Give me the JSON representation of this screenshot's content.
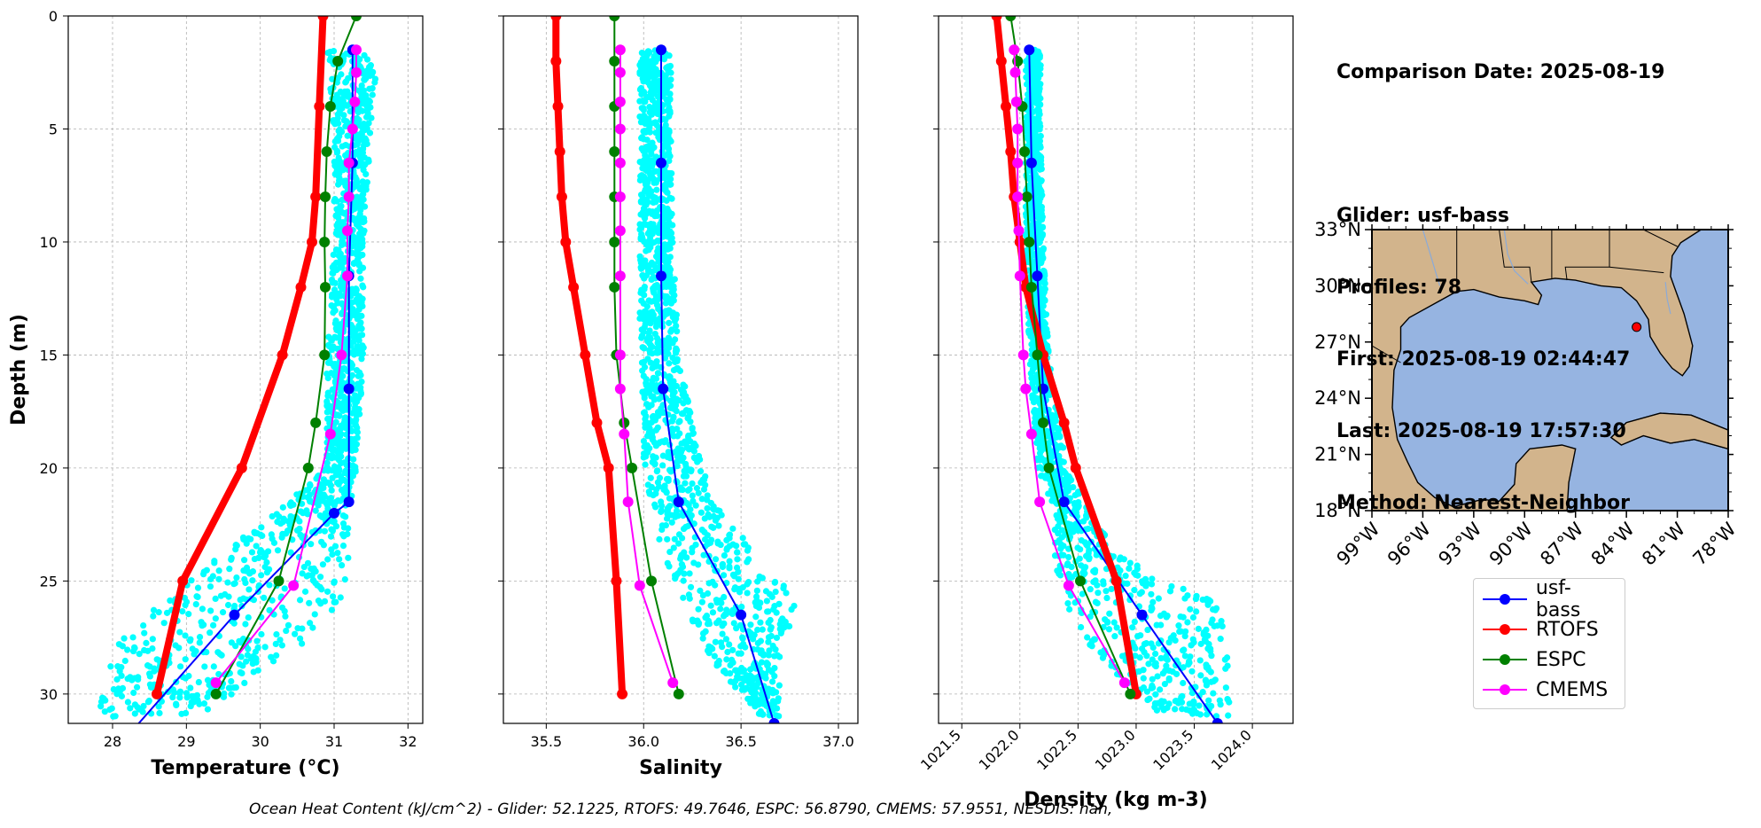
{
  "info": {
    "comparison_date": "Comparison Date: 2025-08-19",
    "glider": "Glider: usf-bass",
    "profiles": "Profiles: 78",
    "first": "First: 2025-08-19 02:44:47",
    "last": "Last: 2025-08-19 17:57:30",
    "method": "Method: Nearest-Neighbor"
  },
  "footer": "Ocean Heat Content (kJ/cm^2) - Glider: 52.1225,  RTOFS: 49.7646,  ESPC: 56.8790,  CMEMS: 57.9551,  NESDIS: nan,",
  "legend": [
    {
      "name": "usf-bass",
      "color": "#0000ff"
    },
    {
      "name": "RTOFS",
      "color": "#ff0000"
    },
    {
      "name": "ESPC",
      "color": "#008000"
    },
    {
      "name": "CMEMS",
      "color": "#ff00ff"
    }
  ],
  "chart_data": [
    {
      "type": "line",
      "xlabel": "Temperature (°C)",
      "ylabel": "Depth (m)",
      "xlim": [
        27.4,
        32.2
      ],
      "ylim": [
        31.3,
        0
      ],
      "xticks": [
        "28",
        "29",
        "30",
        "31",
        "32"
      ],
      "yticks": [
        "0",
        "5",
        "10",
        "15",
        "20",
        "25",
        "30"
      ],
      "grid": true,
      "scatter": {
        "name": "glider points",
        "color": "#00ffff",
        "x_range_by_depth": [
          [
            1.5,
            30.9,
            31.6
          ],
          [
            5,
            31.0,
            31.5
          ],
          [
            10,
            31.0,
            31.4
          ],
          [
            15,
            30.9,
            31.4
          ],
          [
            20,
            30.9,
            31.3
          ],
          [
            22,
            30.2,
            31.2
          ],
          [
            24,
            29.4,
            31.2
          ],
          [
            26,
            28.6,
            31.1
          ],
          [
            28,
            28.0,
            30.5
          ],
          [
            31,
            27.8,
            29.2
          ]
        ]
      },
      "series": [
        {
          "name": "usf-bass",
          "color": "#0000ff",
          "x": [
            31.25,
            31.25,
            31.2,
            31.2,
            31.2,
            31.0,
            29.65,
            28.3
          ],
          "y": [
            1.5,
            6.5,
            11.5,
            16.5,
            21.5,
            22.0,
            26.5,
            31.5
          ]
        },
        {
          "name": "RTOFS",
          "color": "#ff0000",
          "x": [
            30.85,
            30.8,
            30.75,
            30.7,
            30.55,
            30.3,
            29.75,
            28.95,
            28.6
          ],
          "y": [
            0,
            4,
            8,
            10,
            12,
            15,
            20,
            25,
            30
          ]
        },
        {
          "name": "ESPC",
          "color": "#008000",
          "x": [
            31.3,
            31.05,
            30.95,
            30.9,
            30.88,
            30.87,
            30.88,
            30.87,
            30.75,
            30.65,
            30.25,
            29.4
          ],
          "y": [
            0,
            2,
            4,
            6,
            8,
            10,
            12,
            15,
            18,
            20,
            25,
            30
          ]
        },
        {
          "name": "CMEMS",
          "color": "#ff00ff",
          "x": [
            31.3,
            31.3,
            31.28,
            31.25,
            31.2,
            31.2,
            31.18,
            31.18,
            31.1,
            30.95,
            30.45,
            29.4
          ],
          "y": [
            1.5,
            2.5,
            3.8,
            5.0,
            6.5,
            8.0,
            9.5,
            11.5,
            15.0,
            18.5,
            25.2,
            29.5
          ]
        }
      ]
    },
    {
      "type": "line",
      "xlabel": "Salinity",
      "xlim": [
        35.28,
        37.1
      ],
      "ylim": [
        31.3,
        0
      ],
      "xticks": [
        "35.5",
        "36.0",
        "36.5",
        "37.0"
      ],
      "grid": true,
      "scatter": {
        "name": "glider points",
        "color": "#00ffff",
        "x_range_by_depth": [
          [
            1.5,
            35.98,
            36.14
          ],
          [
            5,
            35.98,
            36.14
          ],
          [
            10,
            35.98,
            36.15
          ],
          [
            15,
            35.98,
            36.18
          ],
          [
            18,
            36.0,
            36.25
          ],
          [
            20,
            36.0,
            36.3
          ],
          [
            22,
            36.05,
            36.4
          ],
          [
            24,
            36.1,
            36.6
          ],
          [
            26,
            36.2,
            36.8
          ],
          [
            28,
            36.3,
            36.7
          ],
          [
            31,
            36.6,
            36.7
          ]
        ]
      },
      "series": [
        {
          "name": "usf-bass",
          "color": "#0000ff",
          "x": [
            36.09,
            36.09,
            36.09,
            36.1,
            36.18,
            36.5,
            36.67
          ],
          "y": [
            1.5,
            6.5,
            11.5,
            16.5,
            21.5,
            26.5,
            31.3
          ]
        },
        {
          "name": "RTOFS",
          "color": "#ff0000",
          "x": [
            35.55,
            35.55,
            35.56,
            35.57,
            35.58,
            35.6,
            35.64,
            35.7,
            35.76,
            35.82,
            35.86,
            35.89
          ],
          "y": [
            0,
            2,
            4,
            6,
            8,
            10,
            12,
            15,
            18,
            20,
            25,
            30
          ]
        },
        {
          "name": "ESPC",
          "color": "#008000",
          "x": [
            35.85,
            35.85,
            35.85,
            35.85,
            35.85,
            35.85,
            35.85,
            35.86,
            35.9,
            35.94,
            36.04,
            36.18
          ],
          "y": [
            0,
            2,
            4,
            6,
            8,
            10,
            12,
            15,
            18,
            20,
            25,
            30
          ]
        },
        {
          "name": "CMEMS",
          "color": "#ff00ff",
          "x": [
            35.88,
            35.88,
            35.88,
            35.88,
            35.88,
            35.88,
            35.88,
            35.88,
            35.88,
            35.88,
            35.9,
            35.92,
            35.98,
            36.15
          ],
          "y": [
            1.5,
            2.5,
            3.8,
            5.0,
            6.5,
            8.0,
            9.5,
            11.5,
            15.0,
            16.5,
            18.5,
            21.5,
            25.2,
            29.5
          ]
        }
      ]
    },
    {
      "type": "line",
      "xlabel": "Density (kg m-3)",
      "xlim": [
        1021.3,
        1024.35
      ],
      "ylim": [
        31.3,
        0
      ],
      "xticks": [
        "1021.5",
        "1022.0",
        "1022.5",
        "1023.0",
        "1023.5",
        "1024.0"
      ],
      "grid": true,
      "scatter": {
        "name": "glider points",
        "color": "#00ffff",
        "x_range_by_depth": [
          [
            1.5,
            1022.05,
            1022.18
          ],
          [
            5,
            1022.05,
            1022.18
          ],
          [
            10,
            1022.05,
            1022.2
          ],
          [
            15,
            1022.08,
            1022.25
          ],
          [
            20,
            1022.15,
            1022.4
          ],
          [
            22,
            1022.3,
            1022.6
          ],
          [
            24,
            1022.3,
            1022.9
          ],
          [
            25,
            1022.3,
            1023.3
          ],
          [
            26,
            1022.4,
            1023.7
          ],
          [
            28,
            1022.6,
            1023.8
          ],
          [
            31,
            1023.2,
            1023.8
          ]
        ]
      },
      "series": [
        {
          "name": "usf-bass",
          "color": "#0000ff",
          "x": [
            1022.08,
            1022.1,
            1022.15,
            1022.2,
            1022.38,
            1023.05,
            1023.7
          ],
          "y": [
            1.5,
            6.5,
            11.5,
            16.5,
            21.5,
            26.5,
            31.3
          ]
        },
        {
          "name": "RTOFS",
          "color": "#ff0000",
          "x": [
            1021.8,
            1021.84,
            1021.88,
            1021.92,
            1021.95,
            1022.0,
            1022.05,
            1022.2,
            1022.38,
            1022.48,
            1022.83,
            1023.0
          ],
          "y": [
            0,
            2,
            4,
            6,
            8,
            10,
            12,
            15,
            18,
            20,
            25,
            30
          ]
        },
        {
          "name": "ESPC",
          "color": "#008000",
          "x": [
            1021.92,
            1021.98,
            1022.02,
            1022.04,
            1022.06,
            1022.08,
            1022.1,
            1022.15,
            1022.2,
            1022.25,
            1022.52,
            1022.95
          ],
          "y": [
            0,
            2,
            4,
            6,
            8,
            10,
            12,
            15,
            18,
            20,
            25,
            30
          ]
        },
        {
          "name": "CMEMS",
          "color": "#ff00ff",
          "x": [
            1021.95,
            1021.96,
            1021.97,
            1021.98,
            1021.98,
            1021.98,
            1021.99,
            1022.0,
            1022.03,
            1022.05,
            1022.1,
            1022.17,
            1022.42,
            1022.9
          ],
          "y": [
            1.5,
            2.5,
            3.8,
            5.0,
            6.5,
            8.0,
            9.5,
            11.5,
            15.0,
            16.5,
            18.5,
            21.5,
            25.2,
            29.5
          ]
        }
      ]
    }
  ],
  "map": {
    "lon_ticks": [
      "99°W",
      "96°W",
      "93°W",
      "90°W",
      "87°W",
      "84°W",
      "81°W",
      "78°W"
    ],
    "lat_ticks": [
      "33°N",
      "30°N",
      "27°N",
      "24°N",
      "21°N",
      "18°N"
    ],
    "lon_range": [
      -99,
      -78
    ],
    "lat_range": [
      18,
      33
    ],
    "land_color": "#d2b48c",
    "ocean_color": "#96b4e1",
    "marker": {
      "lon": -83.4,
      "lat": 27.8,
      "color": "#ff0000"
    }
  }
}
